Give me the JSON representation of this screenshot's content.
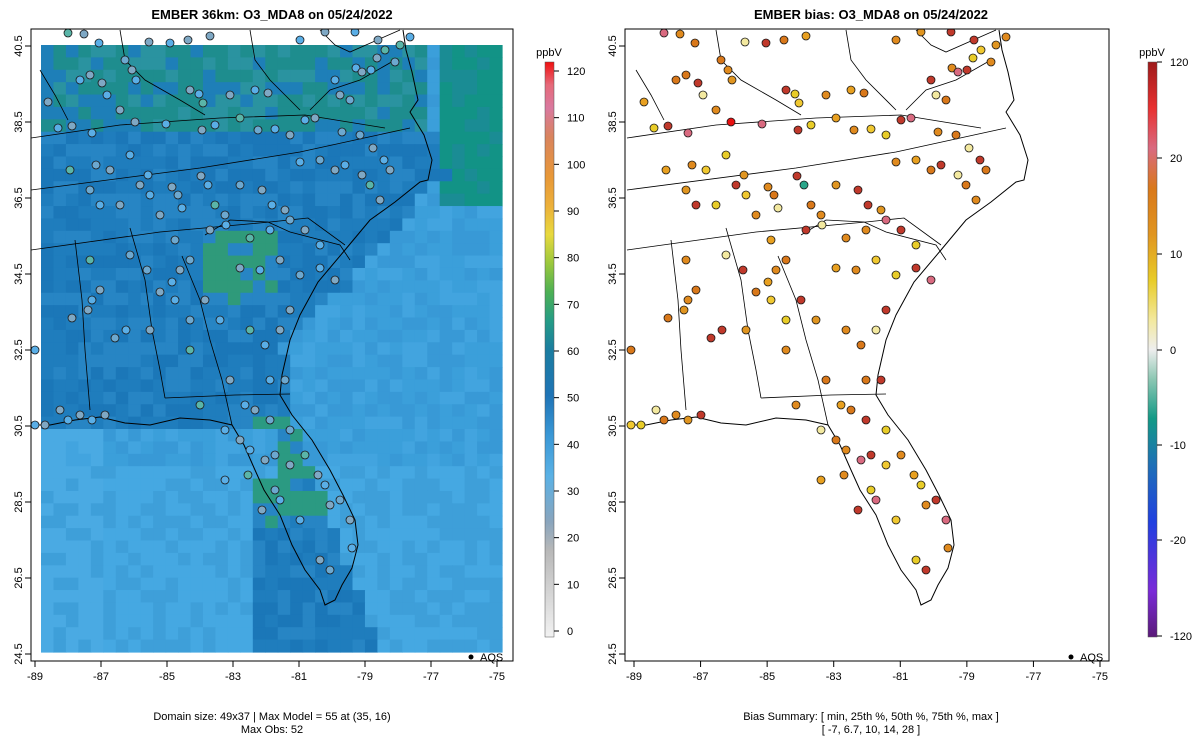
{
  "left_panel": {
    "title": "EMBER 36km: O3_MDA8 on 05/24/2022",
    "footer_line1": "Domain size: 49x37 | Max Model = 55 at (35, 16)",
    "footer_line2": "Max Obs: 52",
    "legend_marker_label": "AQS",
    "colorbar_unit": "ppbV",
    "colorbar_ticks": [
      "0",
      "10",
      "20",
      "30",
      "40",
      "50",
      "60",
      "70",
      "80",
      "90",
      "100",
      "110",
      "120"
    ]
  },
  "right_panel": {
    "title": "EMBER bias: O3_MDA8 on 05/24/2022",
    "footer_line1": "Bias Summary: [ min, 25th %, 50th %, 75th %, max ]",
    "footer_line2": "[ -7,   6.7,   10,   14,   28 ]",
    "legend_marker_label": "AQS",
    "colorbar_unit": "ppbV",
    "colorbar_ticks": [
      "120",
      "20",
      "10",
      "0",
      "-10",
      "-20",
      "-120"
    ]
  },
  "axes": {
    "x_ticks": [
      "-89",
      "-87",
      "-85",
      "-83",
      "-81",
      "-79",
      "-77",
      "-75"
    ],
    "y_ticks": [
      "40.5",
      "38.5",
      "36.5",
      "34.5",
      "32.5",
      "30.5",
      "28.5",
      "26.5",
      "24.5"
    ]
  },
  "colors": {
    "model_low": "#4aa8e0",
    "model_mid": "#1e78b8",
    "model_high": "#2a9a7a",
    "bias_high": "#c0392b",
    "bias_mid": "#e08a1e",
    "bias_low": "#f0d030",
    "neutral": "#cccccc"
  }
}
